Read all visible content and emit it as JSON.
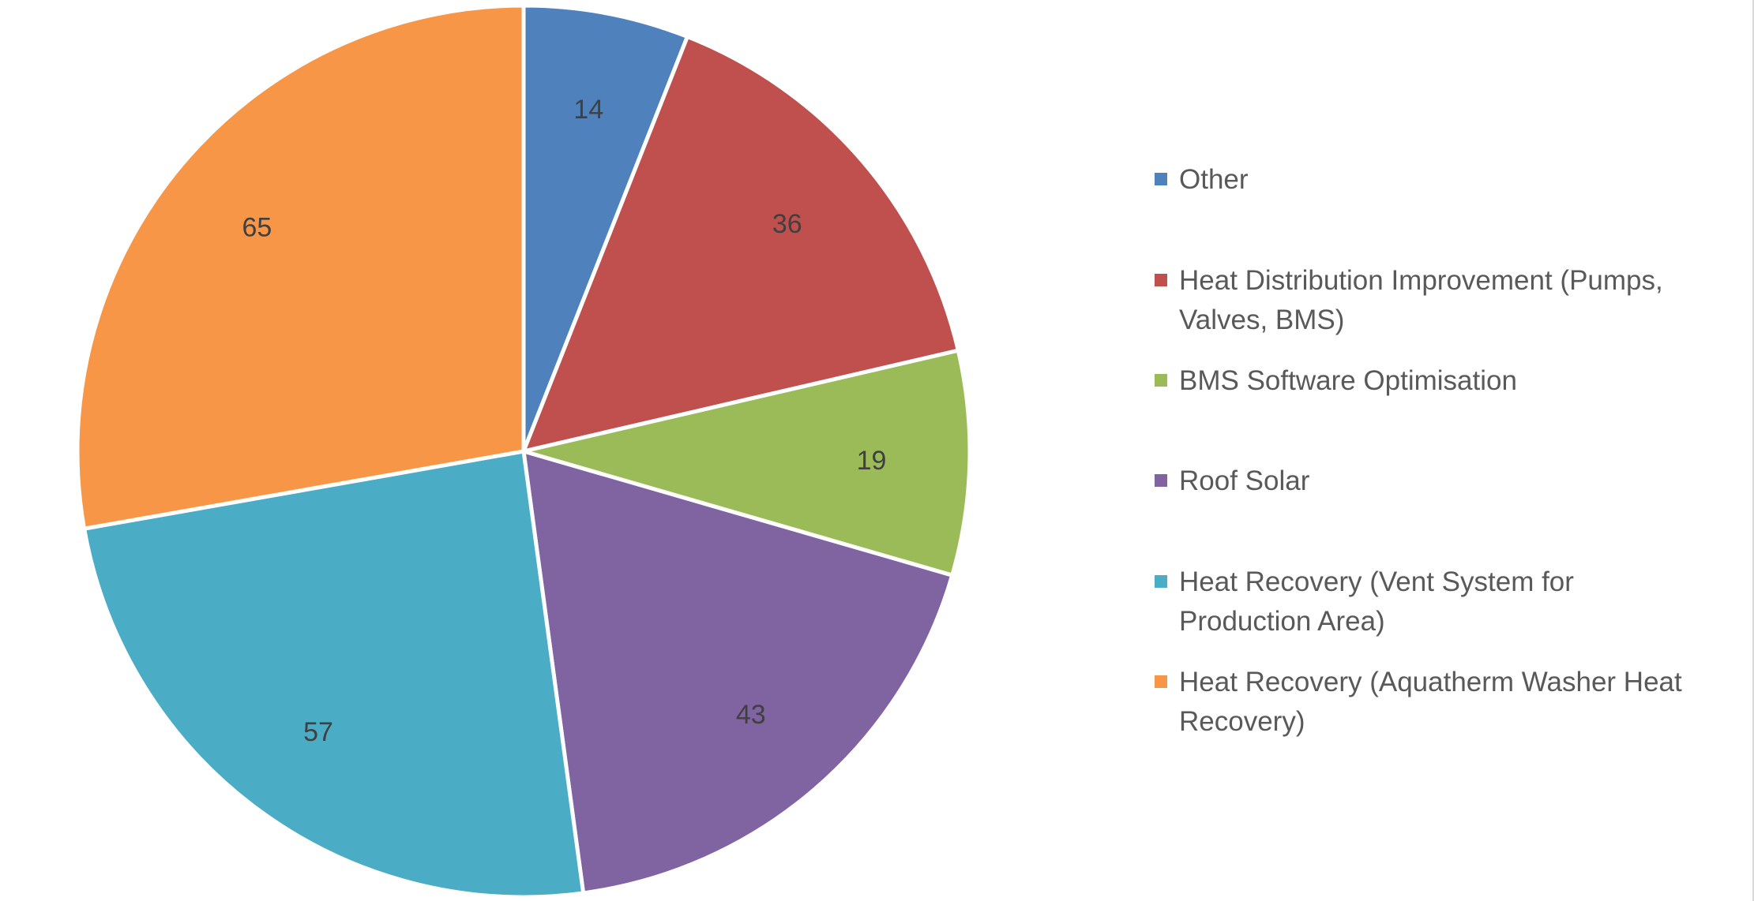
{
  "chart_data": {
    "type": "pie",
    "title": "",
    "legend_position": "right",
    "slices": [
      {
        "label": "Other",
        "value": 14,
        "color": "#4F81BD"
      },
      {
        "label": "Heat Distribution Improvement (Pumps, Valves, BMS)",
        "label_lines": [
          "Heat Distribution Improvement (Pumps,",
          "Valves, BMS)"
        ],
        "value": 36,
        "color": "#C0504D"
      },
      {
        "label": "BMS Software Optimisation",
        "value": 19,
        "color": "#9BBB59"
      },
      {
        "label": "Roof Solar",
        "value": 43,
        "color": "#8064A2"
      },
      {
        "label": "Heat Recovery (Vent System for Production Area)",
        "label_lines": [
          "Heat Recovery (Vent System for",
          "Production Area)"
        ],
        "value": 57,
        "color": "#4BACC6"
      },
      {
        "label": "Heat Recovery (Aquatherm Washer Heat Recovery)",
        "label_lines": [
          "Heat Recovery (Aquatherm Washer Heat",
          "Recovery)"
        ],
        "value": 65,
        "color": "#F79646"
      }
    ]
  }
}
